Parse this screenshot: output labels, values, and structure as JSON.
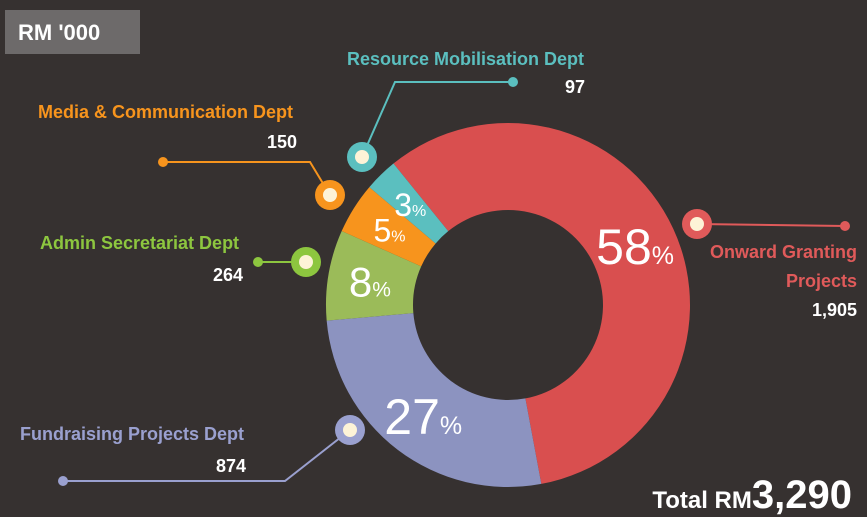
{
  "chart_data": {
    "type": "donut",
    "title": "RM '000",
    "categories": [
      "Onward Granting Projects",
      "Fundraising Projects Dept",
      "Admin Secretariat Dept",
      "Media & Communication Dept",
      "Resource Mobilisation Dept"
    ],
    "values": [
      1905,
      874,
      264,
      150,
      97
    ],
    "value_labels": [
      "1,905",
      "874",
      "264",
      "150",
      "97"
    ],
    "percents": [
      58,
      27,
      8,
      5,
      3
    ],
    "percent_symbol": "%",
    "colors": [
      "#d94f4f",
      "#8c93c0",
      "#9bbb59",
      "#f7941d",
      "#5bbfbf"
    ],
    "label_colors": [
      "#e05a5a",
      "#9aa0cf",
      "#8dc63f",
      "#f7941d",
      "#5bbfbf"
    ],
    "total_prefix": "Total RM",
    "total": {
      "value": 3290,
      "label": "3,290"
    }
  }
}
